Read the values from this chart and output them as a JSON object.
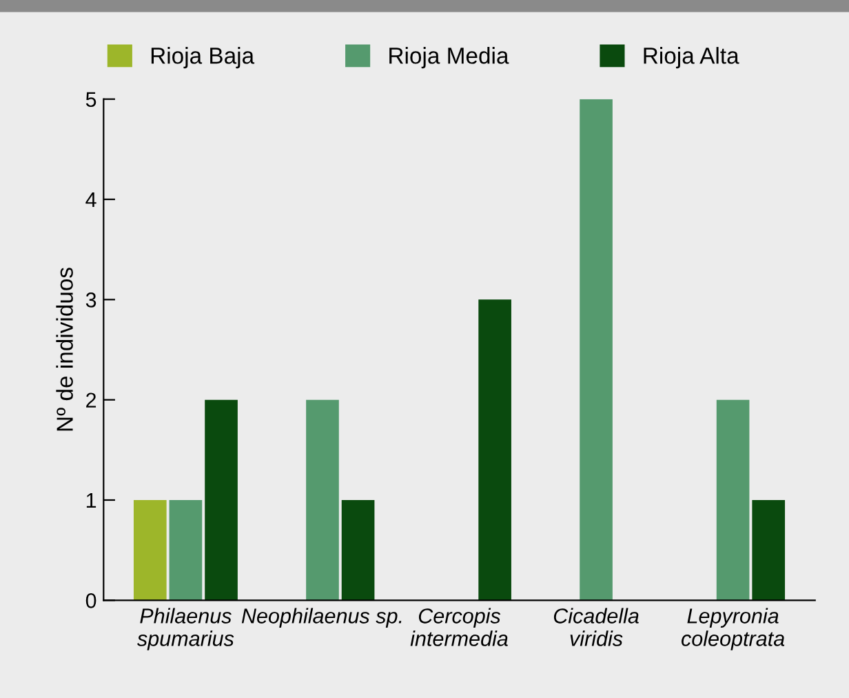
{
  "chart_data": {
    "type": "bar",
    "ylabel": "Nº de individuos",
    "categories": [
      "Philaenus\nspumarius",
      "Neophilaenus sp.",
      "Cercopis\nintermedia",
      "Cicadella\nviridis",
      "Lepyronia\ncoleoptrata"
    ],
    "series": [
      {
        "name": "Rioja Baja",
        "color": "#9db62a",
        "values": [
          1,
          null,
          null,
          null,
          null
        ]
      },
      {
        "name": "Rioja Media",
        "color": "#559a6e",
        "values": [
          1,
          2,
          null,
          5,
          2
        ]
      },
      {
        "name": "Rioja Alta",
        "color": "#0a4a0e",
        "values": [
          2,
          1,
          3,
          null,
          1
        ]
      }
    ],
    "ylim": [
      0,
      5
    ],
    "yticks": [
      0,
      1,
      2,
      3,
      4,
      5
    ],
    "grid": false,
    "legend": "top"
  }
}
